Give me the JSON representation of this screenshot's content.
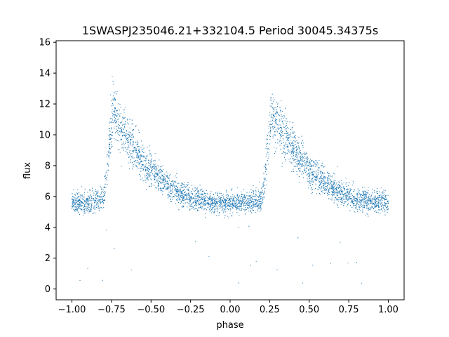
{
  "chart_data": {
    "type": "scatter",
    "title": "1SWASPJ235046.21+332104.5 Period 30045.34375s",
    "xlabel": "phase",
    "ylabel": "flux",
    "xlim": [
      -1.1,
      1.1
    ],
    "ylim": [
      -0.7,
      16.1
    ],
    "xticks": [
      -1.0,
      -0.75,
      -0.5,
      -0.25,
      0.0,
      0.25,
      0.5,
      0.75,
      1.0
    ],
    "xtick_labels": [
      "−1.00",
      "−0.75",
      "−0.50",
      "−0.25",
      "0.00",
      "0.25",
      "0.50",
      "0.75",
      "1.00"
    ],
    "yticks": [
      0,
      2,
      4,
      6,
      8,
      10,
      12,
      14,
      16
    ],
    "ytick_labels": [
      "0",
      "2",
      "4",
      "6",
      "8",
      "10",
      "12",
      "14",
      "16"
    ],
    "grid": false,
    "marker_color": "#1f77b4",
    "series": [
      {
        "description_of_shape": "phase-folded light curve repeated twice",
        "x": [
          -1.0,
          -0.95,
          -0.9,
          -0.85,
          -0.8,
          -0.78,
          -0.76,
          -0.74,
          -0.72,
          -0.7,
          -0.65,
          -0.6,
          -0.55,
          -0.5,
          -0.45,
          -0.4,
          -0.35,
          -0.3,
          -0.25,
          -0.2,
          -0.15,
          -0.1,
          -0.05,
          0.0,
          0.05,
          0.1,
          0.15,
          0.2,
          0.22,
          0.24,
          0.26,
          0.28,
          0.3,
          0.35,
          0.4,
          0.45,
          0.5,
          0.55,
          0.6,
          0.65,
          0.7,
          0.75,
          0.8,
          0.85,
          0.9,
          0.95,
          1.0
        ],
        "y": [
          5.6,
          5.6,
          5.6,
          5.7,
          5.8,
          7.5,
          10.0,
          11.5,
          11.2,
          10.6,
          9.8,
          9.0,
          8.3,
          7.7,
          7.2,
          6.8,
          6.4,
          6.1,
          5.9,
          5.8,
          5.7,
          5.6,
          5.6,
          5.6,
          5.6,
          5.6,
          5.6,
          5.7,
          7.0,
          9.5,
          11.3,
          11.2,
          10.7,
          9.9,
          9.1,
          8.4,
          7.8,
          7.3,
          6.9,
          6.5,
          6.2,
          6.0,
          5.8,
          5.7,
          5.6,
          5.6,
          5.6
        ]
      }
    ]
  }
}
